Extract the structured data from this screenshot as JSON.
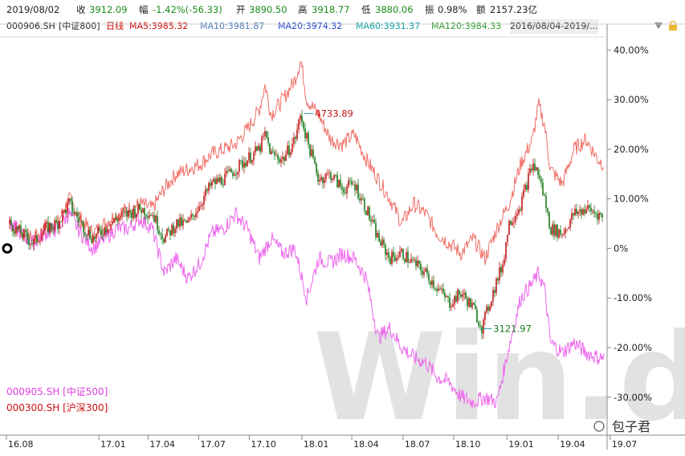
{
  "header": {
    "date": "2019/08/02",
    "close_label": "收",
    "close_value": "3912.09",
    "change_label": "幅",
    "change_value": "-1.42%(-56.33)",
    "open_label": "开",
    "open_value": "3890.50",
    "high_label": "高",
    "high_value": "3918.77",
    "low_label": "低",
    "low_value": "3880.06",
    "amplitude_label": "振",
    "amplitude_value": "0.98%",
    "amount_label": "额",
    "amount_value": "2157.23亿"
  },
  "indicator_bar": {
    "code": "000906.SH",
    "name": "[中证800]",
    "period": "日线",
    "ma5": "MA5:3985.32",
    "ma10": "MA10:3981.87",
    "ma20": "MA20:3974.32",
    "ma60": "MA60:3931.37",
    "ma120": "MA120:3984.33",
    "date_range": "2016/08/04-2019/...",
    "colors": {
      "ma5": "#cc0000",
      "ma10": "#4a7ab8",
      "ma20": "#1a3fcc",
      "ma60": "#00a0a0",
      "ma120": "#2a9a2a"
    }
  },
  "watermark": "Win.d",
  "brand": "包子君",
  "chart_data": {
    "type": "line",
    "x_ticks": [
      "16.08",
      "17.01",
      "17.04",
      "17.07",
      "17.10",
      "18.01",
      "18.04",
      "18.07",
      "18.10",
      "19.01",
      "19.04",
      "19.07"
    ],
    "y_ticks": [
      "40.00%",
      "30.00%",
      "20.00%",
      "10.00%",
      "0%",
      "-10.00%",
      "-20.00%",
      "-30.00%"
    ],
    "ylim": [
      -37,
      42
    ],
    "annotations": [
      {
        "label": "4733.89",
        "series": "000906.SH",
        "x": 0.495,
        "y": 27.2
      },
      {
        "label": "3121.97",
        "series": "000906.SH",
        "x": 0.795,
        "y": -16.2
      }
    ],
    "series": [
      {
        "name": "000300.SH [沪深300]",
        "color": "#f07068",
        "kind": "line",
        "points": [
          [
            0,
            5
          ],
          [
            0.02,
            3
          ],
          [
            0.04,
            2
          ],
          [
            0.06,
            4
          ],
          [
            0.08,
            5
          ],
          [
            0.1,
            10
          ],
          [
            0.12,
            6
          ],
          [
            0.14,
            3
          ],
          [
            0.16,
            5
          ],
          [
            0.18,
            7
          ],
          [
            0.2,
            8
          ],
          [
            0.22,
            9
          ],
          [
            0.24,
            8
          ],
          [
            0.26,
            12
          ],
          [
            0.28,
            15
          ],
          [
            0.3,
            16
          ],
          [
            0.32,
            17
          ],
          [
            0.34,
            19
          ],
          [
            0.36,
            20
          ],
          [
            0.38,
            21
          ],
          [
            0.4,
            24
          ],
          [
            0.42,
            28
          ],
          [
            0.43,
            33
          ],
          [
            0.44,
            27
          ],
          [
            0.46,
            30
          ],
          [
            0.48,
            34
          ],
          [
            0.49,
            38
          ],
          [
            0.5,
            30
          ],
          [
            0.52,
            27
          ],
          [
            0.54,
            22
          ],
          [
            0.56,
            21
          ],
          [
            0.58,
            23
          ],
          [
            0.6,
            18
          ],
          [
            0.62,
            14
          ],
          [
            0.64,
            10
          ],
          [
            0.66,
            5
          ],
          [
            0.68,
            9
          ],
          [
            0.7,
            7
          ],
          [
            0.72,
            3
          ],
          [
            0.74,
            1
          ],
          [
            0.76,
            -1
          ],
          [
            0.78,
            2
          ],
          [
            0.8,
            -2
          ],
          [
            0.82,
            4
          ],
          [
            0.84,
            9
          ],
          [
            0.86,
            17
          ],
          [
            0.88,
            22
          ],
          [
            0.89,
            29
          ],
          [
            0.9,
            25
          ],
          [
            0.91,
            16
          ],
          [
            0.93,
            13
          ],
          [
            0.95,
            20
          ],
          [
            0.97,
            22
          ],
          [
            0.99,
            18
          ],
          [
            1.0,
            17
          ]
        ]
      },
      {
        "name": "000905.SH [中证500]",
        "color": "#ee66ee",
        "kind": "line",
        "points": [
          [
            0,
            5
          ],
          [
            0.02,
            3
          ],
          [
            0.04,
            1
          ],
          [
            0.06,
            3
          ],
          [
            0.08,
            4
          ],
          [
            0.1,
            7
          ],
          [
            0.12,
            3
          ],
          [
            0.14,
            0
          ],
          [
            0.16,
            2
          ],
          [
            0.18,
            4
          ],
          [
            0.2,
            4
          ],
          [
            0.22,
            6
          ],
          [
            0.24,
            4
          ],
          [
            0.26,
            -5
          ],
          [
            0.28,
            -2
          ],
          [
            0.3,
            -6
          ],
          [
            0.32,
            -3
          ],
          [
            0.34,
            3
          ],
          [
            0.36,
            4
          ],
          [
            0.38,
            7
          ],
          [
            0.4,
            4
          ],
          [
            0.42,
            -2
          ],
          [
            0.44,
            2
          ],
          [
            0.46,
            -1
          ],
          [
            0.48,
            0
          ],
          [
            0.5,
            -10
          ],
          [
            0.52,
            -2
          ],
          [
            0.54,
            -3
          ],
          [
            0.56,
            -1
          ],
          [
            0.58,
            -2
          ],
          [
            0.6,
            -6
          ],
          [
            0.62,
            -18
          ],
          [
            0.64,
            -16
          ],
          [
            0.66,
            -20
          ],
          [
            0.68,
            -22
          ],
          [
            0.7,
            -23
          ],
          [
            0.72,
            -26
          ],
          [
            0.74,
            -27
          ],
          [
            0.76,
            -30
          ],
          [
            0.78,
            -31
          ],
          [
            0.8,
            -30
          ],
          [
            0.82,
            -31
          ],
          [
            0.84,
            -20
          ],
          [
            0.86,
            -10
          ],
          [
            0.88,
            -7
          ],
          [
            0.89,
            -5
          ],
          [
            0.9,
            -8
          ],
          [
            0.91,
            -19
          ],
          [
            0.93,
            -21
          ],
          [
            0.95,
            -19
          ],
          [
            0.97,
            -21
          ],
          [
            0.99,
            -22
          ],
          [
            1.0,
            -22
          ]
        ]
      },
      {
        "name": "000906.SH [中证800]",
        "color": "#c01818",
        "kind": "candles",
        "points": [
          [
            0,
            5
          ],
          [
            0.02,
            3
          ],
          [
            0.04,
            1
          ],
          [
            0.06,
            4
          ],
          [
            0.08,
            5
          ],
          [
            0.1,
            9
          ],
          [
            0.12,
            5
          ],
          [
            0.14,
            2
          ],
          [
            0.16,
            4
          ],
          [
            0.18,
            6
          ],
          [
            0.2,
            7
          ],
          [
            0.22,
            8
          ],
          [
            0.24,
            7
          ],
          [
            0.26,
            2
          ],
          [
            0.28,
            5
          ],
          [
            0.3,
            5
          ],
          [
            0.32,
            9
          ],
          [
            0.34,
            13
          ],
          [
            0.36,
            14
          ],
          [
            0.38,
            16
          ],
          [
            0.4,
            18
          ],
          [
            0.42,
            20
          ],
          [
            0.43,
            23
          ],
          [
            0.44,
            19
          ],
          [
            0.46,
            18
          ],
          [
            0.48,
            22
          ],
          [
            0.49,
            27
          ],
          [
            0.5,
            22
          ],
          [
            0.51,
            18
          ],
          [
            0.52,
            14
          ],
          [
            0.54,
            15
          ],
          [
            0.56,
            12
          ],
          [
            0.58,
            13
          ],
          [
            0.6,
            8
          ],
          [
            0.62,
            2
          ],
          [
            0.64,
            -2
          ],
          [
            0.66,
            -1
          ],
          [
            0.68,
            -3
          ],
          [
            0.7,
            -5
          ],
          [
            0.72,
            -8
          ],
          [
            0.74,
            -11
          ],
          [
            0.76,
            -9
          ],
          [
            0.78,
            -12
          ],
          [
            0.795,
            -16
          ],
          [
            0.81,
            -10
          ],
          [
            0.83,
            -3
          ],
          [
            0.84,
            5
          ],
          [
            0.86,
            9
          ],
          [
            0.88,
            17
          ],
          [
            0.89,
            15
          ],
          [
            0.9,
            10
          ],
          [
            0.91,
            4
          ],
          [
            0.93,
            3
          ],
          [
            0.95,
            7
          ],
          [
            0.97,
            8
          ],
          [
            0.99,
            7
          ],
          [
            1.0,
            6
          ]
        ]
      }
    ],
    "legend": [
      {
        "label": "000905.SH [中证500]",
        "color": "#e040e0"
      },
      {
        "label": "000300.SH [沪深300]",
        "color": "#cc1010"
      }
    ]
  }
}
